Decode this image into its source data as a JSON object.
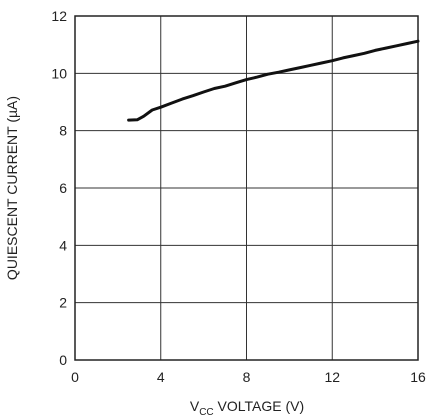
{
  "chart_data": {
    "type": "line",
    "title": "",
    "xlabel_main": "V",
    "xlabel_sub": "CC",
    "xlabel_rest": " VOLTAGE (V)",
    "ylabel": "QUIESCENT CURRENT (µA)",
    "xlim": [
      0,
      16
    ],
    "ylim": [
      0,
      12
    ],
    "x_ticks": [
      0,
      4,
      8,
      12,
      16
    ],
    "y_ticks": [
      0,
      2,
      4,
      6,
      8,
      10,
      12
    ],
    "grid": true,
    "series": [
      {
        "x": [
          2.5,
          2.9,
          3.2,
          3.6,
          4.0,
          4.5,
          5.0,
          5.5,
          6.0,
          6.5,
          7.0,
          7.5,
          8.0,
          8.5,
          9.0,
          9.5,
          10.0,
          10.5,
          11.0,
          11.5,
          12.0,
          12.5,
          13.0,
          13.5,
          14.0,
          14.5,
          15.0,
          15.5,
          16.0
        ],
        "y": [
          8.37,
          8.38,
          8.5,
          8.72,
          8.82,
          8.96,
          9.1,
          9.22,
          9.35,
          9.47,
          9.55,
          9.67,
          9.78,
          9.87,
          9.97,
          10.04,
          10.12,
          10.2,
          10.28,
          10.36,
          10.44,
          10.54,
          10.62,
          10.7,
          10.8,
          10.88,
          10.96,
          11.04,
          11.12
        ]
      }
    ]
  }
}
